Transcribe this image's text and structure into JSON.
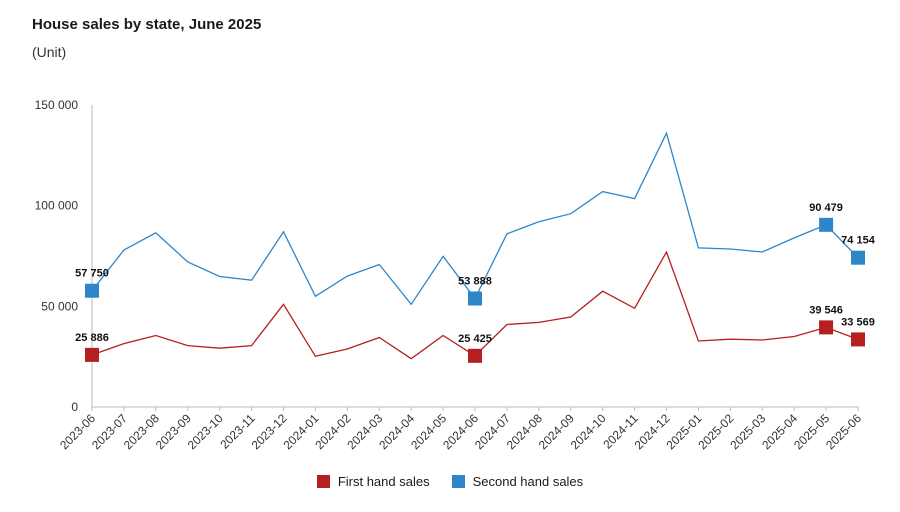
{
  "title": "House sales by state, June 2025",
  "subtitle": "(Unit)",
  "colors": {
    "first": "#b51f1f",
    "second": "#2e86c8",
    "axis": "#bbbbbb"
  },
  "chart_data": {
    "type": "line",
    "title": "House sales by state, June 2025",
    "subtitle": "(Unit)",
    "xlabel": "",
    "ylabel": "",
    "ylim": [
      0,
      150000
    ],
    "yticks": [
      0,
      50000,
      100000,
      150000
    ],
    "ytick_labels": [
      "0",
      "50 000",
      "100 000",
      "150 000"
    ],
    "grid": false,
    "legend_position": "bottom",
    "categories": [
      "2023-06",
      "2023-07",
      "2023-08",
      "2023-09",
      "2023-10",
      "2023-11",
      "2023-12",
      "2024-01",
      "2024-02",
      "2024-03",
      "2024-04",
      "2024-05",
      "2024-06",
      "2024-07",
      "2024-08",
      "2024-09",
      "2024-10",
      "2024-11",
      "2024-12",
      "2025-01",
      "2025-02",
      "2025-03",
      "2025-04",
      "2025-05",
      "2025-06"
    ],
    "series": [
      {
        "name": "First hand sales",
        "values": [
          25886,
          31500,
          35500,
          30500,
          29200,
          30500,
          51000,
          25200,
          28800,
          34500,
          24000,
          35500,
          25425,
          41000,
          42000,
          44700,
          57500,
          49000,
          77000,
          32800,
          33700,
          33300,
          35000,
          39546,
          33569
        ],
        "labels": [
          {
            "index": 0,
            "text": "25 886"
          },
          {
            "index": 12,
            "text": "25 425"
          },
          {
            "index": 23,
            "text": "39 546"
          },
          {
            "index": 24,
            "text": "33 569"
          }
        ]
      },
      {
        "name": "Second hand sales",
        "values": [
          57750,
          78000,
          86500,
          72000,
          64800,
          63000,
          87000,
          55000,
          65000,
          70800,
          51000,
          74800,
          53888,
          86000,
          92000,
          96000,
          107000,
          103500,
          136000,
          79000,
          78500,
          77000,
          84000,
          90479,
          74154
        ],
        "labels": [
          {
            "index": 0,
            "text": "57 750"
          },
          {
            "index": 12,
            "text": "53 888"
          },
          {
            "index": 23,
            "text": "90 479"
          },
          {
            "index": 24,
            "text": "74 154"
          }
        ]
      }
    ]
  }
}
